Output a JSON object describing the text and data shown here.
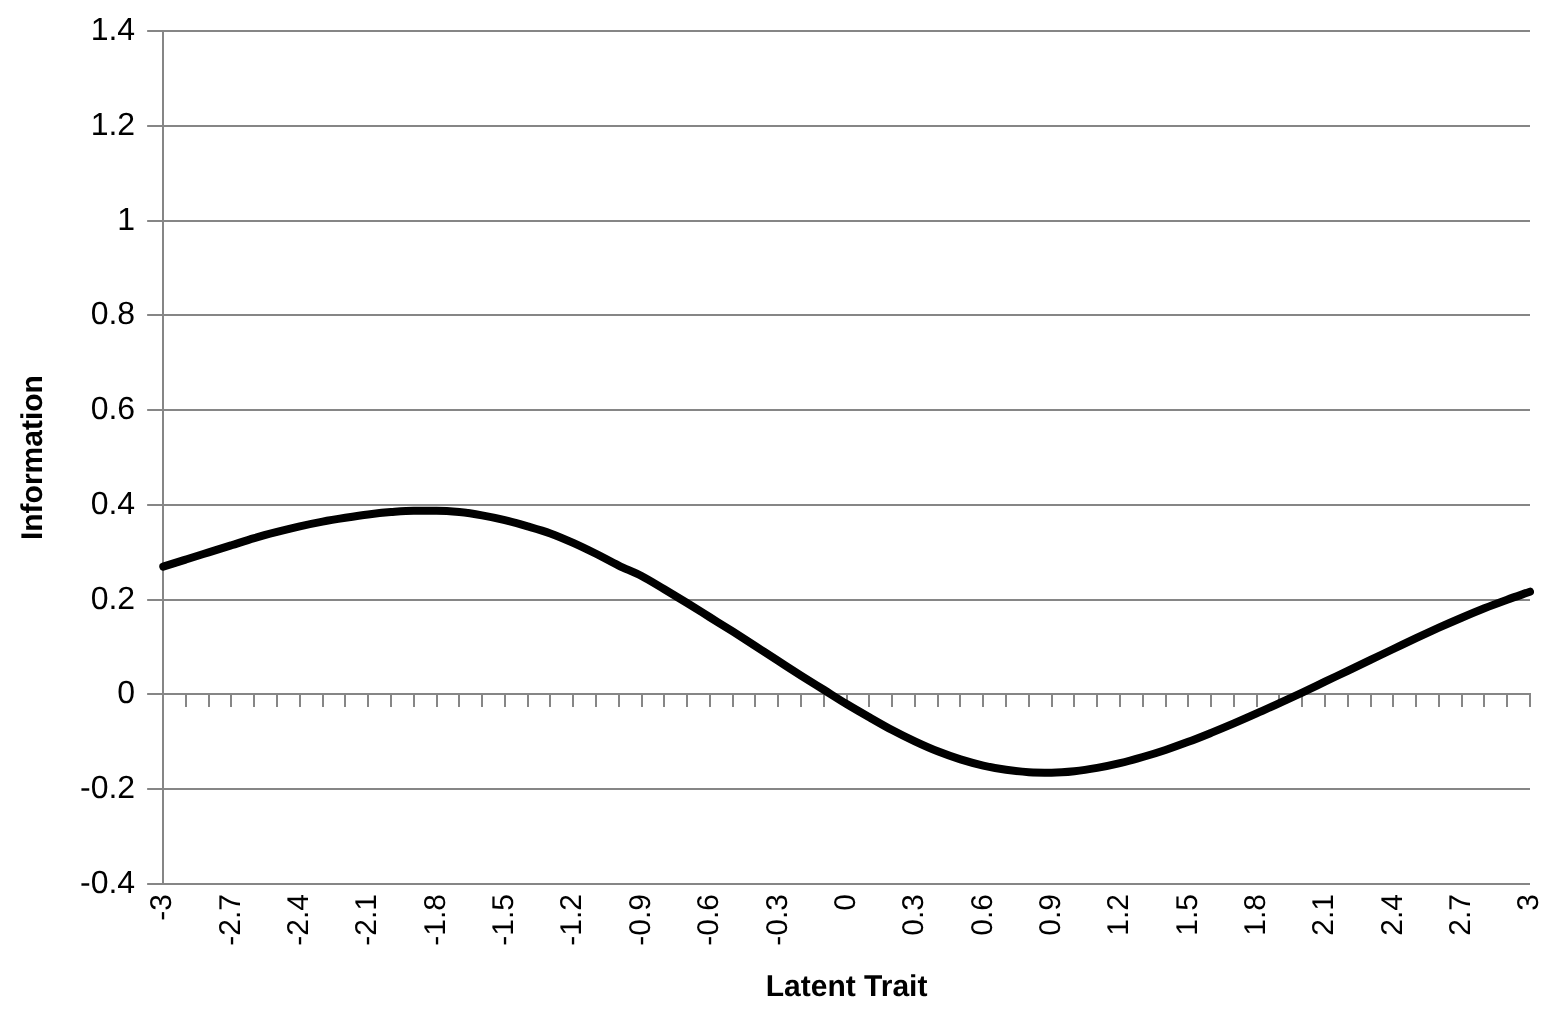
{
  "chart_data": {
    "type": "line",
    "xlabel": "Latent Trait",
    "ylabel": "Information",
    "categories": [
      "-3",
      null,
      null,
      "-2.7",
      null,
      null,
      "-2.4",
      null,
      null,
      "-2.1",
      null,
      null,
      "-1.8",
      null,
      null,
      "-1.5",
      null,
      null,
      "-1.2",
      null,
      null,
      "-0.9",
      null,
      null,
      "-0.6",
      null,
      null,
      "-0.3",
      null,
      null,
      "0",
      null,
      null,
      "0.3",
      null,
      null,
      "0.6",
      null,
      null,
      "0.9",
      null,
      null,
      "1.2",
      null,
      null,
      "1.5",
      null,
      null,
      "1.8",
      null,
      null,
      "2.1",
      null,
      null,
      "2.4",
      null,
      null,
      "2.7",
      null,
      null,
      "3"
    ],
    "series": [
      {
        "color": "#000000",
        "values": [
          0.27,
          0.285,
          0.3,
          0.315,
          0.33,
          0.343,
          0.355,
          0.365,
          0.373,
          0.38,
          0.385,
          0.388,
          0.388,
          0.385,
          0.378,
          0.368,
          0.355,
          0.34,
          0.32,
          0.297,
          0.272,
          0.25,
          0.222,
          0.193,
          0.163,
          0.133,
          0.102,
          0.071,
          0.04,
          0.01,
          -0.02,
          -0.048,
          -0.075,
          -0.099,
          -0.12,
          -0.137,
          -0.15,
          -0.159,
          -0.164,
          -0.165,
          -0.162,
          -0.155,
          -0.145,
          -0.132,
          -0.117,
          -0.1,
          -0.081,
          -0.061,
          -0.04,
          -0.018,
          0.004,
          0.027,
          0.05,
          0.073,
          0.096,
          0.119,
          0.141,
          0.162,
          0.182,
          0.2,
          0.217
        ]
      }
    ],
    "ylim": [
      -0.4,
      1.4
    ],
    "yticks": [
      -0.4,
      -0.2,
      0,
      0.2,
      0.4,
      0.6,
      0.8,
      1,
      1.2,
      1.4
    ],
    "grid": "y",
    "legend": false,
    "marker": "none",
    "line_style": "solid"
  }
}
